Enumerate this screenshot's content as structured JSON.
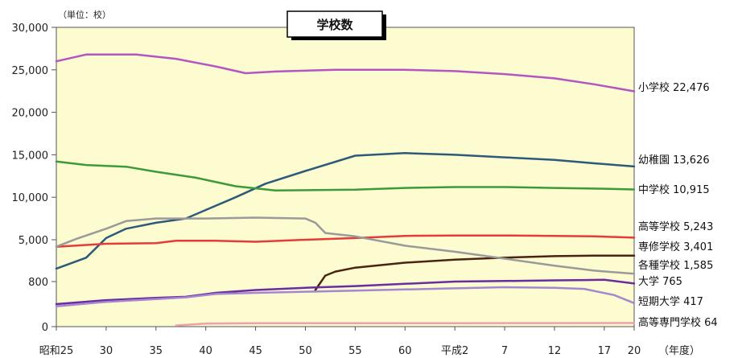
{
  "chart_data": {
    "type": "line",
    "title": "学校数",
    "unit_label": "（単位：校）",
    "x_axis_unit": "（年度）",
    "x_ticks": [
      "昭和25",
      "30",
      "35",
      "40",
      "45",
      "50",
      "55",
      "60",
      "平成2",
      "7",
      "12",
      "17",
      "20"
    ],
    "y_ticks": [
      "30,000",
      "25,000",
      "20,000",
      "15,000",
      "10,000",
      "5,000",
      "800",
      "0"
    ],
    "grid": false,
    "background": "#fdfbd0",
    "series": [
      {
        "name": "小学校 22,476",
        "color": "#b455c2",
        "points": [
          [
            1950,
            26000
          ],
          [
            1953,
            26800
          ],
          [
            1958,
            26800
          ],
          [
            1962,
            26300
          ],
          [
            1966,
            25400
          ],
          [
            1969,
            24600
          ],
          [
            1972,
            24800
          ],
          [
            1978,
            25000
          ],
          [
            1985,
            25000
          ],
          [
            1990,
            24850
          ],
          [
            1995,
            24500
          ],
          [
            2000,
            24000
          ],
          [
            2004,
            23300
          ],
          [
            2008,
            22476
          ]
        ]
      },
      {
        "name": "幼稚園 13,626",
        "color": "#2d5a78",
        "points": [
          [
            1950,
            2100
          ],
          [
            1953,
            3200
          ],
          [
            1955,
            5200
          ],
          [
            1957,
            6300
          ],
          [
            1960,
            7000
          ],
          [
            1963,
            7500
          ],
          [
            1965,
            8500
          ],
          [
            1968,
            10000
          ],
          [
            1971,
            11600
          ],
          [
            1975,
            13100
          ],
          [
            1980,
            14900
          ],
          [
            1985,
            15200
          ],
          [
            1990,
            15000
          ],
          [
            1995,
            14700
          ],
          [
            2000,
            14400
          ],
          [
            2004,
            14000
          ],
          [
            2008,
            13626
          ]
        ]
      },
      {
        "name": "中学校 10,915",
        "color": "#3d9a3a",
        "points": [
          [
            1950,
            14200
          ],
          [
            1953,
            13800
          ],
          [
            1957,
            13600
          ],
          [
            1960,
            13000
          ],
          [
            1964,
            12300
          ],
          [
            1968,
            11300
          ],
          [
            1972,
            10800
          ],
          [
            1980,
            10900
          ],
          [
            1985,
            11100
          ],
          [
            1990,
            11200
          ],
          [
            1995,
            11200
          ],
          [
            2000,
            11100
          ],
          [
            2005,
            11000
          ],
          [
            2008,
            10915
          ]
        ]
      },
      {
        "name": "高等学校 5,243",
        "color": "#e63b3b",
        "points": [
          [
            1950,
            4300
          ],
          [
            1955,
            4600
          ],
          [
            1960,
            4650
          ],
          [
            1962,
            4900
          ],
          [
            1966,
            4900
          ],
          [
            1970,
            4800
          ],
          [
            1975,
            5000
          ],
          [
            1980,
            5200
          ],
          [
            1985,
            5450
          ],
          [
            1990,
            5500
          ],
          [
            1995,
            5500
          ],
          [
            2000,
            5450
          ],
          [
            2004,
            5400
          ],
          [
            2008,
            5243
          ]
        ]
      },
      {
        "name": "専修学校 3,401",
        "color": "#4a2410",
        "points": [
          [
            1976,
            650
          ],
          [
            1977,
            1400
          ],
          [
            1978,
            1800
          ],
          [
            1980,
            2200
          ],
          [
            1985,
            2700
          ],
          [
            1990,
            3000
          ],
          [
            1995,
            3200
          ],
          [
            2000,
            3350
          ],
          [
            2004,
            3401
          ],
          [
            2008,
            3401
          ]
        ]
      },
      {
        "name": "各種学校 1,585",
        "color": "#9a9a9a",
        "points": [
          [
            1950,
            4300
          ],
          [
            1952,
            5100
          ],
          [
            1955,
            6300
          ],
          [
            1957,
            7200
          ],
          [
            1960,
            7500
          ],
          [
            1965,
            7500
          ],
          [
            1970,
            7600
          ],
          [
            1975,
            7500
          ],
          [
            1976,
            7000
          ],
          [
            1977,
            5800
          ],
          [
            1980,
            5400
          ],
          [
            1985,
            4400
          ],
          [
            1990,
            3800
          ],
          [
            1995,
            3100
          ],
          [
            2000,
            2400
          ],
          [
            2004,
            1900
          ],
          [
            2008,
            1585
          ]
        ]
      },
      {
        "name": "大学 765",
        "color": "#6a2ca0",
        "points": [
          [
            1950,
            400
          ],
          [
            1955,
            470
          ],
          [
            1960,
            510
          ],
          [
            1963,
            530
          ],
          [
            1966,
            600
          ],
          [
            1970,
            650
          ],
          [
            1975,
            690
          ],
          [
            1980,
            720
          ],
          [
            1985,
            760
          ],
          [
            1990,
            800
          ],
          [
            1995,
            860
          ],
          [
            2000,
            920
          ],
          [
            2003,
            950
          ],
          [
            2005,
            980
          ],
          [
            2008,
            765
          ]
        ]
      },
      {
        "name": "短期大学 417",
        "color": "#a686d0",
        "points": [
          [
            1950,
            360
          ],
          [
            1955,
            440
          ],
          [
            1960,
            490
          ],
          [
            1963,
            520
          ],
          [
            1966,
            580
          ],
          [
            1970,
            600
          ],
          [
            1975,
            620
          ],
          [
            1980,
            640
          ],
          [
            1985,
            660
          ],
          [
            1990,
            680
          ],
          [
            1995,
            700
          ],
          [
            2000,
            690
          ],
          [
            2003,
            670
          ],
          [
            2006,
            560
          ],
          [
            2008,
            417
          ]
        ]
      },
      {
        "name": "高等専門学校 64",
        "color": "#f0a0a8",
        "points": [
          [
            1962,
            20
          ],
          [
            1965,
            54
          ],
          [
            1970,
            60
          ],
          [
            1980,
            62
          ],
          [
            1990,
            62
          ],
          [
            2000,
            63
          ],
          [
            2008,
            64
          ]
        ]
      }
    ]
  }
}
